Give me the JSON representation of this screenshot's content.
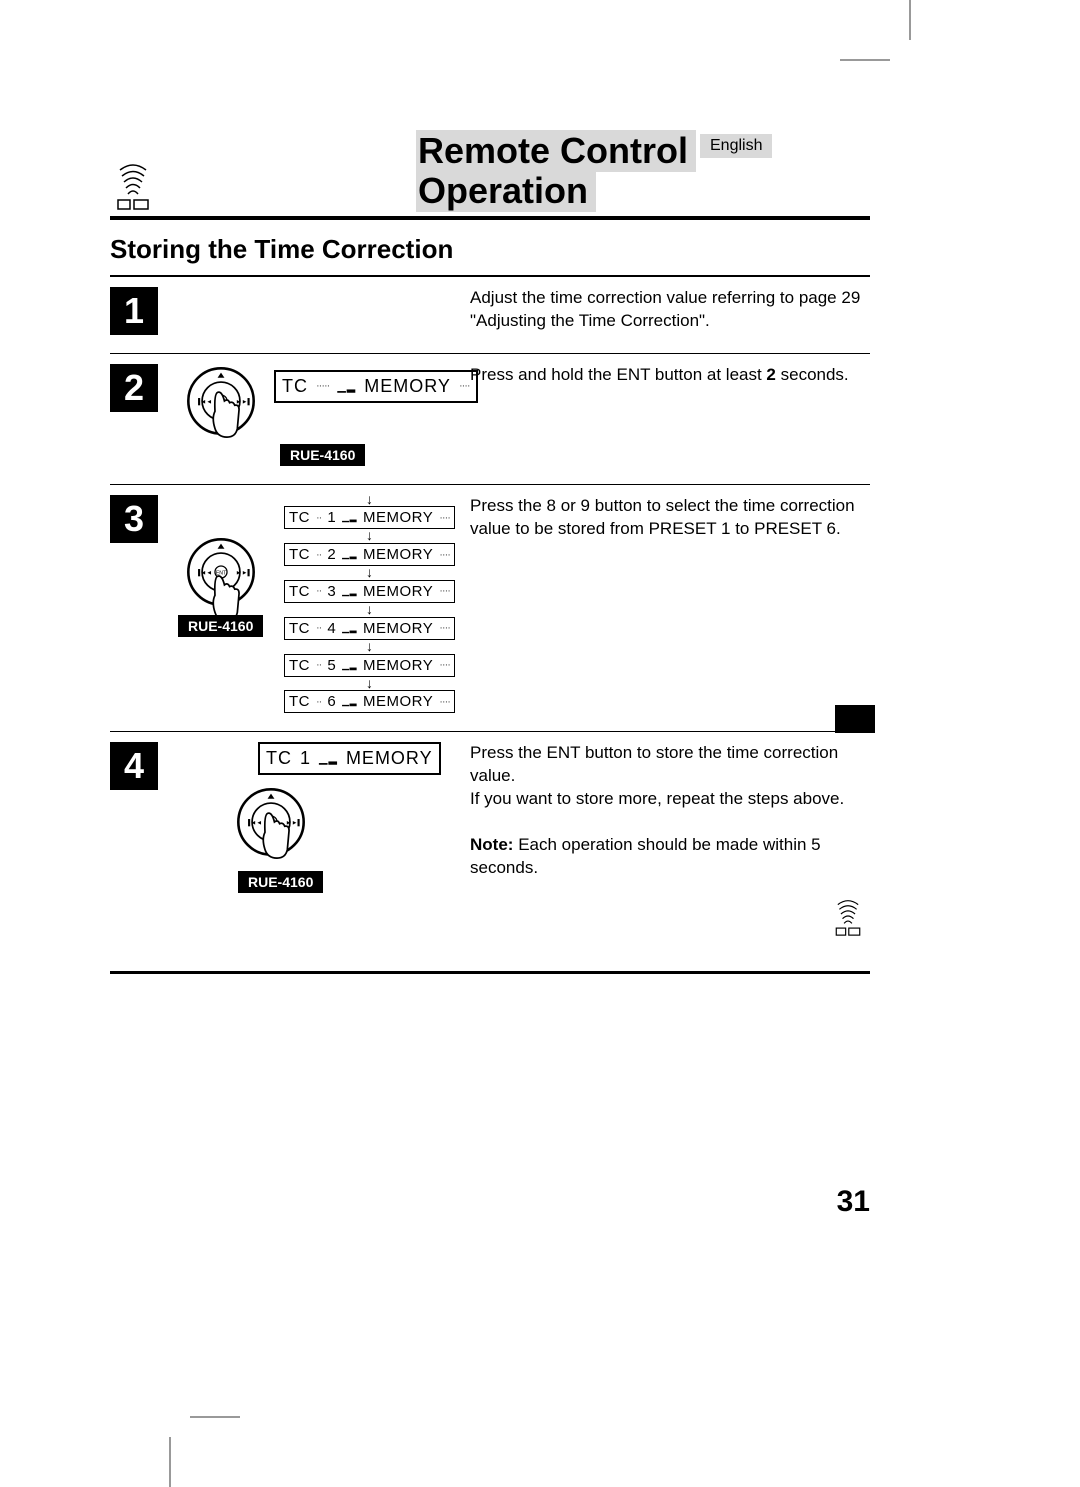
{
  "header": {
    "title_line1": "Remote Control",
    "title_line2": "Operation",
    "language": "English"
  },
  "subtitle": "Storing the Time Correction",
  "model_tag": "RUE-4160",
  "steps": [
    {
      "num": "1",
      "desc": "Adjust the time correction value referring to page 29 \"Adjusting the Time Correction\"."
    },
    {
      "num": "2",
      "lcd": {
        "left": "TC",
        "right": "MEMORY"
      },
      "desc_pre": "Press and hold the ENT button at least ",
      "desc_bold": "2",
      "desc_post": " seconds."
    },
    {
      "num": "3",
      "lcd_list": [
        {
          "left": "TC",
          "n": "1",
          "right": "MEMORY"
        },
        {
          "left": "TC",
          "n": "2",
          "right": "MEMORY"
        },
        {
          "left": "TC",
          "n": "3",
          "right": "MEMORY"
        },
        {
          "left": "TC",
          "n": "4",
          "right": "MEMORY"
        },
        {
          "left": "TC",
          "n": "5",
          "right": "MEMORY"
        },
        {
          "left": "TC",
          "n": "6",
          "right": "MEMORY"
        }
      ],
      "desc": "Press the 8 or 9 button to select the time correction value to be stored from PRESET 1 to PRESET 6."
    },
    {
      "num": "4",
      "lcd": {
        "left": "TC",
        "n": "1",
        "right": "MEMORY"
      },
      "desc": "Press the ENT button to store the time correction value.",
      "desc2": "If you want to store more, repeat the steps above.",
      "note_label": "Note:",
      "note_text": "Each operation should be made within 5 seconds."
    }
  ],
  "page_number": "31",
  "colors": {
    "page_bg": "#ffffff",
    "text": "#000000",
    "header_bg": "#d9d9d9",
    "num_bg": "#000000",
    "crop_mark": "#999999"
  }
}
